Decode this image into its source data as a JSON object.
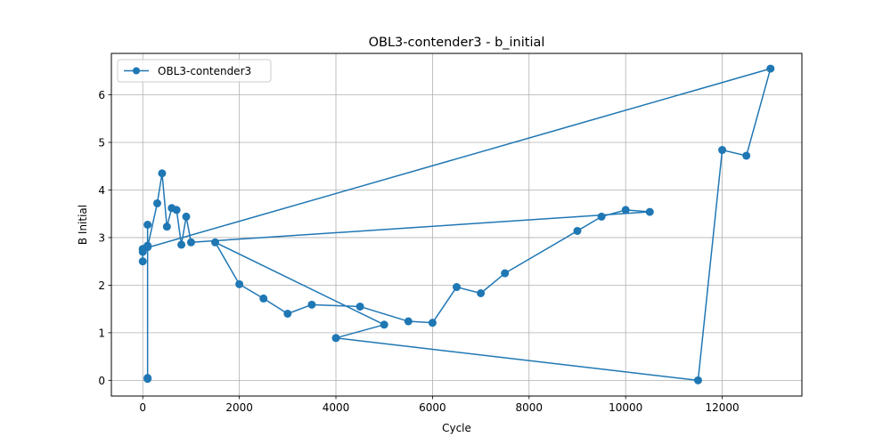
{
  "chart_data": {
    "type": "line",
    "title": "OBL3-contender3 - b_initial",
    "xlabel": "Cycle",
    "ylabel": "B Initial",
    "xlim": [
      -650,
      13650
    ],
    "ylim": [
      -0.33,
      6.87
    ],
    "xticks": [
      0,
      2000,
      4000,
      6000,
      8000,
      10000,
      12000
    ],
    "yticks": [
      0,
      1,
      2,
      3,
      4,
      5,
      6
    ],
    "grid": true,
    "legend_position": "upper left",
    "series": [
      {
        "name": "OBL3-contender3",
        "color": "#1f77b4",
        "marker": "circle",
        "x": [
          0,
          0,
          0,
          100,
          100,
          100,
          100,
          100,
          300,
          400,
          500,
          600,
          700,
          800,
          900,
          1000,
          10500,
          10000,
          9500,
          9000,
          7500,
          7000,
          6500,
          6000,
          5500,
          4500,
          3500,
          3000,
          2500,
          2000,
          1500,
          5000,
          4000,
          11500,
          12000,
          12500,
          13000,
          0
        ],
        "y": [
          2.5,
          2.7,
          2.76,
          2.83,
          3.27,
          0.03,
          0.05,
          2.8,
          3.72,
          4.35,
          3.23,
          3.62,
          3.58,
          2.85,
          3.44,
          2.9,
          3.54,
          3.58,
          3.44,
          3.14,
          2.25,
          1.83,
          1.96,
          1.21,
          1.24,
          1.55,
          1.59,
          1.4,
          1.72,
          2.02,
          2.9,
          1.17,
          0.89,
          0.0,
          4.84,
          4.72,
          6.55,
          2.76
        ]
      }
    ]
  }
}
